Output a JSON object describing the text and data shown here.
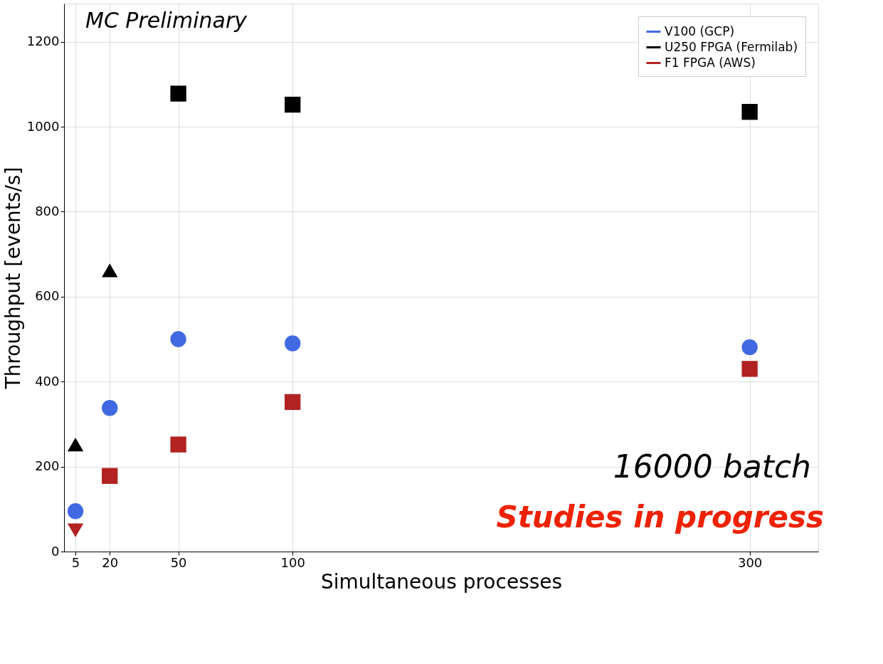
{
  "chart_data": {
    "type": "scatter",
    "xlabel": "Simultaneous processes",
    "ylabel": "Throughput [events/s]",
    "xlim": [
      0,
      330
    ],
    "xticks": [
      5,
      20,
      50,
      100,
      300
    ],
    "ylim": [
      0,
      1290
    ],
    "yticks": [
      0,
      200,
      400,
      600,
      800,
      1000,
      1200
    ],
    "grid": true,
    "legend": "top right",
    "annotations": [
      "MC Preliminary",
      "16000 batch",
      "Studies in progress"
    ],
    "series": [
      {
        "name": "V100 (GCP)",
        "color": "#4169e1",
        "marker": "circle",
        "x": [
          5,
          20,
          50,
          100,
          300
        ],
        "values": [
          95,
          338,
          500,
          490,
          481
        ]
      },
      {
        "name": "U250 FPGA (Fermilab)",
        "color": "#000000",
        "marker": "square",
        "x": [
          50,
          100,
          300
        ],
        "values": [
          1078,
          1052,
          1035
        ]
      },
      {
        "name": "F1 FPGA (AWS)",
        "color": "#b22222",
        "marker": "square",
        "x": [
          20,
          50,
          100,
          300
        ],
        "values": [
          178,
          252,
          352,
          430
        ]
      },
      {
        "color": "#000000",
        "marker": "triangle",
        "x": [
          5,
          20
        ],
        "values": [
          252,
          662
        ]
      },
      {
        "color": "#b22222",
        "marker": "triangle-down",
        "x": [
          5
        ],
        "values": [
          50
        ]
      }
    ]
  }
}
